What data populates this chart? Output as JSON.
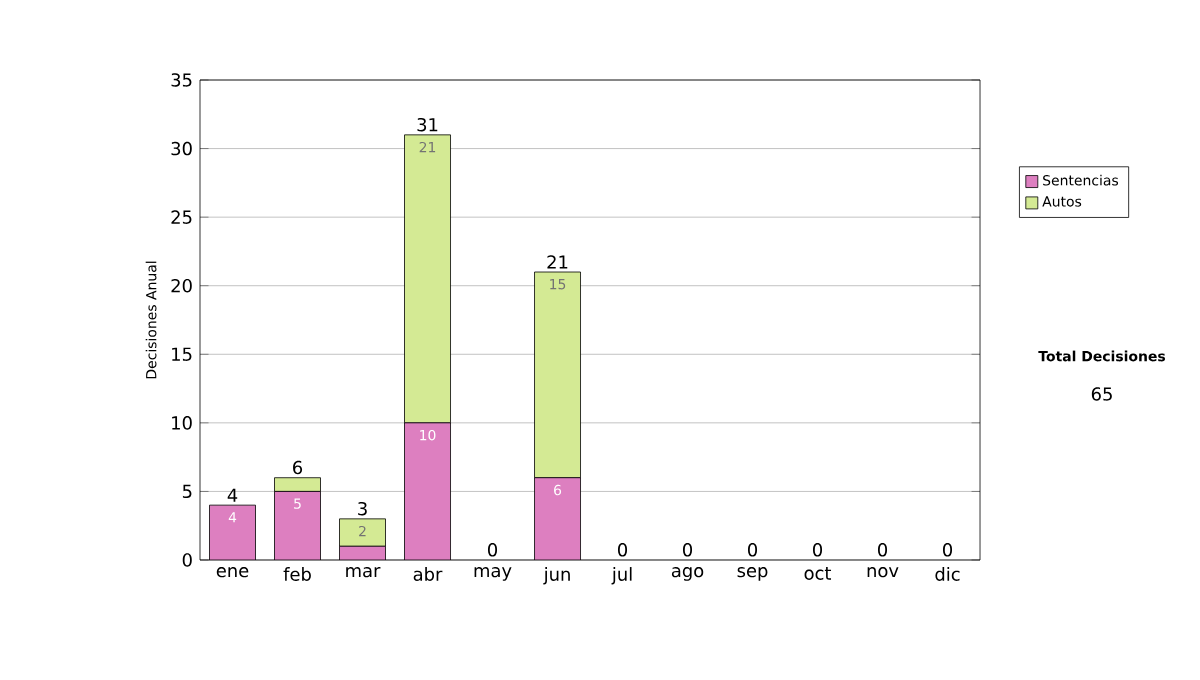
{
  "chart_data": {
    "type": "bar",
    "stacked": true,
    "ylabel": "Decisiones Anual",
    "categories": [
      "ene",
      "feb",
      "mar",
      "abr",
      "may",
      "jun",
      "jul",
      "ago",
      "sep",
      "oct",
      "nov",
      "dic"
    ],
    "series": [
      {
        "name": "Sentencias",
        "color": "#dd7fc0",
        "values": [
          4,
          5,
          1,
          10,
          0,
          6,
          0,
          0,
          0,
          0,
          0,
          0
        ],
        "value_labels": [
          "4",
          "5",
          null,
          "10",
          null,
          "6",
          null,
          null,
          null,
          null,
          null,
          null
        ]
      },
      {
        "name": "Autos",
        "color": "#d4ea94",
        "values": [
          0,
          1,
          2,
          21,
          0,
          15,
          0,
          0,
          0,
          0,
          0,
          0
        ],
        "value_labels": [
          null,
          null,
          "2",
          "21",
          null,
          "15",
          null,
          null,
          null,
          null,
          null,
          null
        ]
      }
    ],
    "totals": [
      "4",
      "6",
      "3",
      "31",
      "0",
      "21",
      "0",
      "0",
      "0",
      "0",
      "0",
      "0"
    ],
    "ylim": [
      0,
      35
    ],
    "yticks": [
      0,
      5,
      10,
      15,
      20,
      25,
      30,
      35
    ],
    "grid": "y",
    "legend": "right",
    "annotations": [
      "Total Decisiones",
      "65"
    ]
  }
}
